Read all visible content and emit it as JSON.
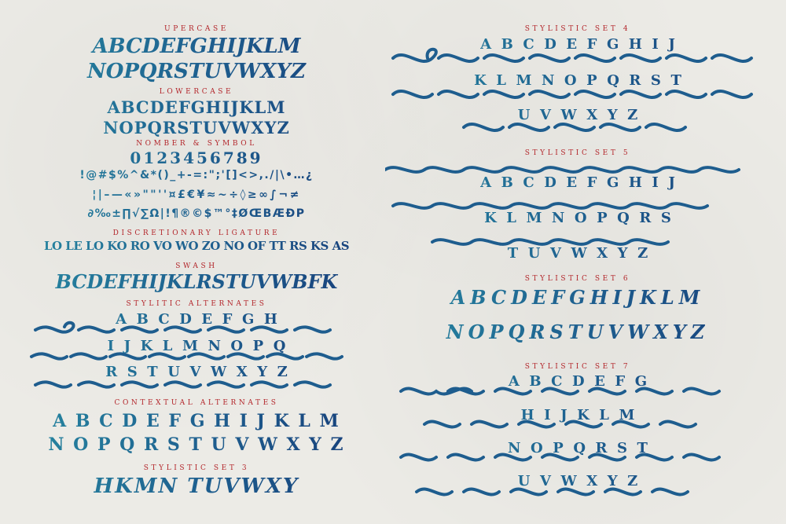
{
  "headings": {
    "uppercase": "UPERCASE",
    "lowercase": "LOWERCASE",
    "number_symbol": "NOMBER & SYMBOL",
    "discretionary": "DISCRETIONARY LIGATURE",
    "swash": "SWASH",
    "stylistic_alternates": "STYLITIC ALTERNATES",
    "contextual": "CONTEXTUAL ALTERNATES",
    "set3": "STYLISTIC SET 3",
    "set4": "STYLISTIC SET 4",
    "set5": "STYLISTIC SET 5",
    "set6": "STYLISTIC SET 6",
    "set7": "STYLISTIC SET 7"
  },
  "rows": {
    "upper1": "ABCDEFGHIJKLM",
    "upper2": "NOPQRSTUVWXYZ",
    "lower1": "ABCDEFGHIJKLM",
    "lower2": "NOPQRSTUVWXYZ",
    "num": "0123456789",
    "sym1": "!@#$%^&*()_+-=:\";'[]<>,./|\\•…¿",
    "sym2": "¦|–—«»\"\"''¤£€¥≈~÷◊≥∞∫¬≠",
    "sym3": "∂‰±∏√∑Ω|!¶®©$™°‡ØŒBÆÐP",
    "disc": "LO LE LO KO RO VO WO ZO NO OF TT RS KS AS",
    "swash": "BCDEFHIJKLRSTUVWBFK",
    "alt1": "A  B  C  D  E  F  G  H",
    "alt2": "I  J  K  L  M  N  O  P  Q",
    "alt3": "R  S  T  U  V  W  X  Y  Z",
    "ctx1": "A B C D E F G H I J K L M",
    "ctx2": "N O P Q R S T U V W X Y Z",
    "set3": "HKMN TUVWXY",
    "set4_1": "A  B  C  D  E  F  G  H  I  J",
    "set4_2": "K  L  M  N  O  P  Q  R  S  T",
    "set4_3": "U  V  W  X  Y  Z",
    "set5_1": "A  B  C  D  E  F  G  H  I  J",
    "set5_2": "K  L  M  N  O  P  Q  R  S",
    "set5_3": "T  U  V  W  X  Y  Z",
    "set6_1": "ABCDEFGHIJKLM",
    "set6_2": "NOPQRSTUVWXYZ",
    "set7_1": "A  B  C  D  E  F  G",
    "set7_2": "H  I  J  K  L  M",
    "set7_3": "N  O  P  Q  R  S  T",
    "set7_4": "U  V  W  X  Y  Z"
  },
  "colors": {
    "heading": "#b3262b",
    "glyph_light": "#2686a0",
    "glyph_dark": "#173f7a",
    "background": "#ecebe6"
  }
}
